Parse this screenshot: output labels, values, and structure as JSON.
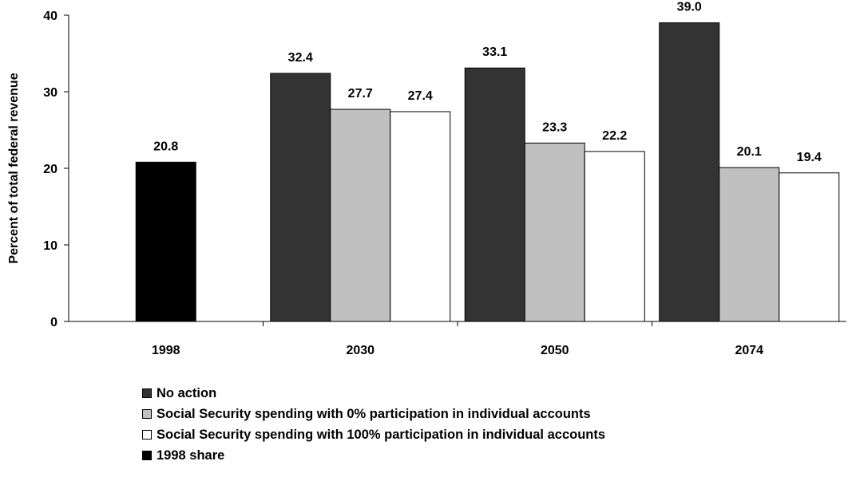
{
  "chart_data": {
    "type": "bar",
    "ylabel": "Percent of total federal revenue",
    "ylim": [
      0,
      40
    ],
    "yticks": [
      "0",
      "10",
      "20",
      "30",
      "40"
    ],
    "categories": [
      "1998",
      "2030",
      "2050",
      "2074"
    ],
    "series": [
      {
        "name": "1998 share",
        "color": "#000000",
        "values": [
          20.8,
          null,
          null,
          null
        ],
        "labels": [
          "20.8",
          null,
          null,
          null
        ]
      },
      {
        "name": "No action",
        "color": "#333333",
        "values": [
          null,
          32.4,
          33.1,
          39.0
        ],
        "labels": [
          null,
          "32.4",
          "33.1",
          "39.0"
        ]
      },
      {
        "name": "Social Security spending with 0% participation in individual accounts",
        "color": "#c0c0c0",
        "values": [
          null,
          27.7,
          23.3,
          20.1
        ],
        "labels": [
          null,
          "27.7",
          "23.3",
          "20.1"
        ]
      },
      {
        "name": "Social Security spending with 100% participation in individual accounts",
        "color": "#ffffff",
        "values": [
          null,
          27.4,
          22.2,
          19.4
        ],
        "labels": [
          null,
          "27.4",
          "22.2",
          "19.4"
        ]
      }
    ],
    "legend": [
      {
        "name": "No action",
        "color": "#333333"
      },
      {
        "name": "Social Security spending with 0% participation in individual accounts",
        "color": "#c0c0c0"
      },
      {
        "name": "Social Security spending with 100% participation in individual accounts",
        "color": "#ffffff"
      },
      {
        "name": "1998 share",
        "color": "#000000"
      }
    ],
    "legend_position": "bottom",
    "grid": false
  }
}
